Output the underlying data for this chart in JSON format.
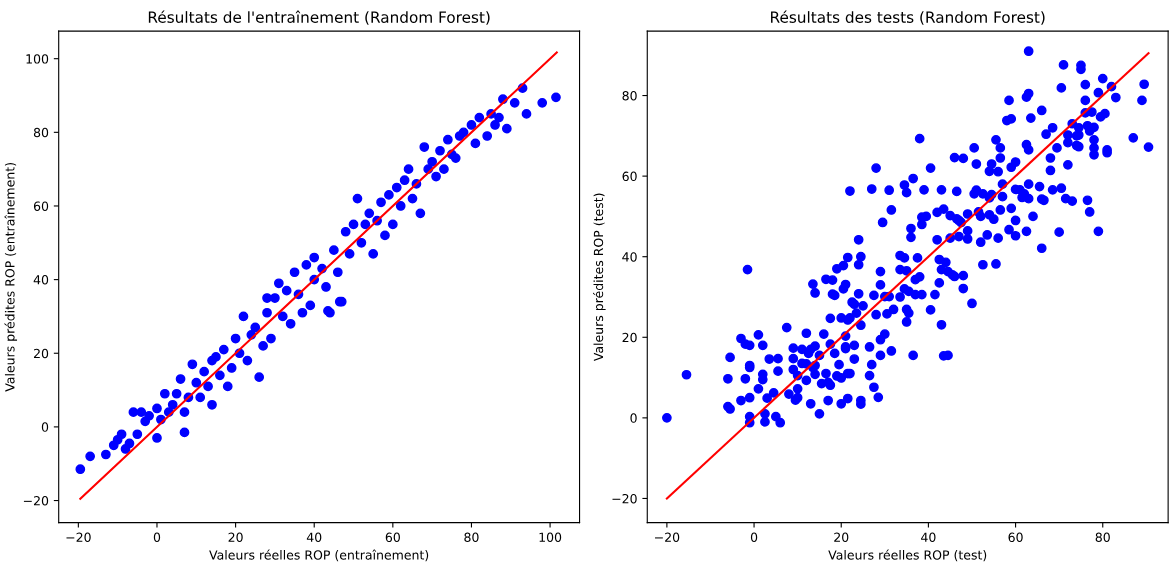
{
  "chart_data": [
    {
      "type": "scatter",
      "title": "Résultats de l'entraînement (Random Forest)",
      "xlabel": "Valeurs réelles ROP (entraînement)",
      "ylabel": "Valeurs prédites ROP (entraînement)",
      "xlim": [
        -25,
        107.5
      ],
      "ylim": [
        -26,
        107.5
      ],
      "xticks": [
        {
          "value": -20,
          "label": "−20"
        },
        0,
        20,
        40,
        60,
        80,
        100
      ],
      "yticks": [
        {
          "value": -20,
          "label": "−20"
        },
        0,
        20,
        40,
        60,
        80,
        100
      ],
      "grid": false,
      "series": [
        {
          "marker": "circle",
          "color": "#0000ff",
          "x": [
            -19.5,
            -17,
            -13,
            -11,
            -10,
            -9,
            -8,
            -7,
            -6,
            -5,
            -4,
            -3,
            -2,
            0,
            0,
            1,
            2,
            3,
            4,
            5,
            6,
            7,
            7,
            8,
            9,
            10,
            11,
            12,
            13,
            14,
            14,
            15,
            16,
            17,
            18,
            19,
            20,
            21,
            22,
            23,
            24,
            25,
            26,
            27,
            28,
            28,
            29,
            30,
            31,
            32,
            33,
            34,
            35,
            36,
            37,
            38,
            39,
            40,
            40,
            42,
            43,
            44,
            45,
            46,
            47,
            48,
            49,
            50,
            51,
            52,
            53,
            54,
            55,
            56,
            57,
            58,
            59,
            60,
            61,
            62,
            63,
            64,
            65,
            66,
            67,
            68,
            69,
            70,
            71,
            72,
            73,
            74,
            75,
            76,
            77,
            78,
            80,
            81,
            82,
            84,
            85,
            86,
            87,
            88,
            89,
            91,
            93,
            94,
            98,
            101.5,
            43.5,
            46.5
          ],
          "values": [
            -11.5,
            -8,
            -7.5,
            -5,
            -3.5,
            -2,
            -6,
            -4.5,
            4,
            -2,
            4,
            1.5,
            3,
            5,
            -3,
            2,
            9,
            4,
            6,
            9,
            13,
            -1.5,
            4,
            8,
            17,
            12,
            8,
            15,
            11,
            18,
            6,
            19,
            14,
            21,
            11,
            16,
            24,
            20,
            30,
            18,
            25,
            27,
            13.5,
            22,
            35,
            31,
            24,
            35,
            39,
            30,
            37,
            28,
            42,
            36,
            31,
            44,
            33,
            40,
            46,
            43,
            38,
            31,
            48,
            42,
            34,
            53,
            47,
            55,
            62,
            50,
            55,
            58,
            47,
            56,
            61,
            52,
            63,
            55,
            65,
            60,
            67,
            70,
            62,
            66,
            58,
            76,
            70,
            72,
            68,
            75,
            70,
            78,
            74,
            73,
            79,
            80,
            82,
            77,
            84,
            79,
            85,
            82,
            84,
            89,
            81,
            88,
            92,
            85,
            88,
            89.5,
            31.5,
            34
          ]
        },
        {
          "type": "line",
          "color": "#ff0000",
          "x": [
            -19.5,
            101.7
          ],
          "values": [
            -19.5,
            101.7
          ]
        }
      ]
    },
    {
      "type": "scatter",
      "title": "Résultats des tests (Random Forest)",
      "xlabel": "Valeurs réelles ROP (test)",
      "ylabel": "Valeurs prédites ROP (test)",
      "xlim": [
        -24.5,
        95
      ],
      "ylim": [
        -26,
        96
      ],
      "xticks": [
        {
          "value": -20,
          "label": "−20"
        },
        0,
        20,
        40,
        60,
        80
      ],
      "yticks": [
        {
          "value": -20,
          "label": "−20"
        },
        0,
        20,
        40,
        60,
        80
      ],
      "grid": false,
      "series": [
        {
          "marker": "circle",
          "color": "#0000ff",
          "x": [
            -20,
            -15.5,
            -6,
            -5.5,
            -6,
            -5.5,
            -3,
            -3,
            -2,
            -2,
            -1.5,
            -1,
            -1,
            -1,
            -1,
            -1,
            -1,
            1,
            1,
            2,
            2,
            2,
            2.5,
            2.5,
            3,
            3.5,
            4.5,
            5,
            5.5,
            5.5,
            6,
            7.5,
            8,
            9,
            9,
            9,
            9.5,
            10,
            10,
            10,
            11,
            11,
            12,
            12,
            12,
            12.5,
            13,
            13,
            13.5,
            13.5,
            14,
            14,
            14,
            14,
            15,
            15,
            15.5,
            16,
            16.5,
            16.5,
            17,
            17,
            17.5,
            17.5,
            17.5,
            18,
            18,
            18.5,
            18.5,
            19,
            19,
            19.5,
            20,
            20,
            20,
            20.5,
            20.5,
            21,
            21,
            21,
            21,
            21.5,
            21.5,
            21.5,
            21.5,
            22,
            22,
            22,
            22.5,
            23,
            23,
            23,
            23.5,
            24,
            24,
            24,
            24.5,
            24.5,
            24.5,
            24.5,
            25,
            26.5,
            26.5,
            27,
            27,
            27.5,
            27.5,
            28,
            28,
            28.5,
            29,
            29,
            29,
            29,
            29.5,
            30,
            30,
            30.5,
            31,
            31,
            31.5,
            31.5,
            32,
            33.5,
            33.5,
            33.5,
            34.5,
            34.5,
            34.5,
            35,
            35,
            35,
            35,
            35.5,
            35.5,
            36,
            36,
            36.5,
            36.5,
            37,
            37,
            37.5,
            38,
            38,
            38.5,
            38.5,
            38.5,
            39,
            39.5,
            40.5,
            40.5,
            41.5,
            42,
            42,
            42.5,
            42.5,
            43,
            43,
            43,
            43.5,
            43.5,
            44,
            44.5,
            44.5,
            45,
            45,
            45.5,
            46,
            46,
            46.5,
            46.5,
            47,
            47,
            47.5,
            48,
            48,
            48,
            49,
            49,
            49,
            50,
            50.5,
            50.5,
            51,
            51,
            51.5,
            52,
            52,
            52.5,
            52.5,
            53.5,
            54,
            54,
            54,
            54.5,
            54.5,
            55,
            55.5,
            55.5,
            56,
            56,
            56.5,
            56.5,
            56.5,
            57,
            57,
            58,
            58.5,
            58.5,
            59,
            59,
            59,
            60,
            60,
            60,
            60,
            61,
            61.5,
            62,
            62.5,
            62.5,
            62.5,
            63,
            63,
            63,
            63,
            63,
            63.5,
            64,
            65.5,
            66,
            66,
            66,
            66.5,
            67,
            68,
            68,
            68.5,
            68.5,
            69.5,
            70,
            70.5,
            70.5,
            71,
            71.5,
            72,
            72,
            72,
            73,
            73,
            74,
            74,
            74.5,
            74.5,
            74.5,
            75,
            75,
            76,
            76,
            76,
            76.5,
            76.5,
            77,
            77,
            77.5,
            78,
            78,
            78,
            78,
            79,
            79,
            79.5,
            80,
            80.5,
            81,
            81,
            82,
            83,
            87,
            89,
            89.5,
            90.5
          ],
          "values": [
            0,
            10.7,
            9.7,
            15,
            2.8,
            2.2,
            19.7,
            4.3,
            18.3,
            9.7,
            36.8,
            18,
            13,
            12.5,
            5,
            0.3,
            -1.2,
            20.6,
            7.2,
            18,
            9.5,
            10.8,
            1,
            -1,
            4.9,
            14.6,
            6.2,
            0.3,
            11.6,
            14.7,
            -1.2,
            22.4,
            5.9,
            17.3,
            14.7,
            12,
            4.4,
            10.5,
            5,
            7.2,
            13.5,
            17,
            21,
            9.3,
            13.4,
            16,
            17,
            3.5,
            33.2,
            12.5,
            31,
            17.8,
            13,
            10.8,
            15.5,
            1,
            8.5,
            20.8,
            34.4,
            11,
            8.8,
            4.3,
            18.3,
            8.1,
            24.7,
            34.2,
            30.7,
            30.4,
            16,
            37,
            10.4,
            13.2,
            24.8,
            9.9,
            3.5,
            37.8,
            32,
            20.3,
            17.2,
            17.6,
            33.1,
            39.8,
            24.3,
            11,
            4.8,
            56.3,
            24.8,
            11,
            28.7,
            28.2,
            18,
            14.6,
            26,
            44.2,
            38,
            30.8,
            40,
            23,
            4.3,
            3.4,
            27.8,
            17.6,
            10.5,
            56.8,
            13.2,
            30.4,
            7.6,
            62,
            25.6,
            5.1,
            36.3,
            33,
            19.4,
            15.5,
            48.5,
            20.8,
            30.1,
            25.8,
            56.5,
            30.1,
            51.6,
            16.6,
            26.9,
            40.3,
            36.8,
            30,
            57.8,
            39.7,
            32,
            55.9,
            36.5,
            23.8,
            26.9,
            26,
            31.4,
            47,
            44.8,
            59.4,
            15.5,
            34.3,
            30.6,
            39.7,
            69.3,
            35,
            49.8,
            48,
            30.6,
            56.6,
            50,
            62,
            26.8,
            30.6,
            44.2,
            51,
            33.5,
            39.3,
            36.8,
            56.6,
            23.1,
            15.4,
            51.8,
            38.6,
            15.5,
            36.3,
            50.2,
            44.6,
            35.5,
            64.6,
            35.1,
            49.4,
            56.2,
            49,
            45,
            48.5,
            64.4,
            35.3,
            32.1,
            46.4,
            44.4,
            50.6,
            28.4,
            55.6,
            67,
            63,
            56.5,
            51.1,
            50,
            43.6,
            55.6,
            38,
            45.4,
            61.2,
            54.6,
            50.4,
            63,
            55.4,
            49.3,
            69,
            38.2,
            61.1,
            44.6,
            67,
            64.5,
            51.6,
            58,
            54.9,
            73.8,
            78.8,
            46.7,
            74.2,
            62.2,
            52,
            63.5,
            56.7,
            49,
            45.2,
            56.6,
            54.7,
            55.6,
            79.6,
            46.3,
            67.8,
            91,
            80.5,
            66.5,
            58,
            54.4,
            74.4,
            50,
            57.4,
            76.3,
            54.3,
            42.1,
            54,
            70.4,
            61.4,
            64.5,
            56.6,
            72,
            67,
            46.1,
            57,
            81.9,
            87.6,
            54.4,
            62.8,
            70.2,
            68.3,
            73,
            53.8,
            70,
            67.6,
            72,
            70.2,
            67.3,
            87.5,
            86.5,
            82.7,
            78.8,
            75.7,
            72.5,
            54,
            51.1,
            71.2,
            75.9,
            72.1,
            69,
            67,
            65.3,
            46.3,
            80.7,
            74.7,
            84.2,
            75.5,
            65.8,
            66.5,
            82.2,
            79.5,
            69.5,
            78.8,
            82.8,
            67.2
          ]
        },
        {
          "type": "line",
          "color": "#ff0000",
          "x": [
            -20,
            90.5
          ],
          "values": [
            -20,
            90.5
          ]
        }
      ]
    }
  ]
}
